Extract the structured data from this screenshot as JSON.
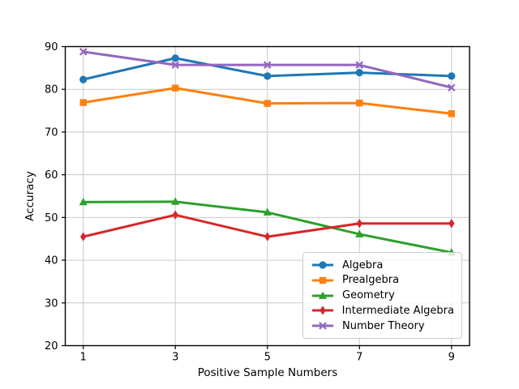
{
  "figure": {
    "background_color": "#ffffff",
    "text_color": "#000000"
  },
  "chart_data": {
    "type": "line",
    "title": "",
    "xlabel": "Positive Sample Numbers",
    "ylabel": "Accuracy",
    "x": [
      1,
      3,
      5,
      7,
      9
    ],
    "xticks": [
      "1",
      "3",
      "5",
      "7",
      "9"
    ],
    "yticks": [
      20,
      30,
      40,
      50,
      60,
      70,
      80,
      90
    ],
    "ylim": [
      20,
      90
    ],
    "xlim_padding": "markers inset ~22px from side spines",
    "grid": true,
    "grid_color": "#c9c9c9",
    "axis_color": "#000000",
    "legend_position": "lower right",
    "series": [
      {
        "name": "Algebra",
        "color": "#1f77b4",
        "marker": "circle",
        "values": [
          82.3,
          87.3,
          83.1,
          83.9,
          83.1
        ]
      },
      {
        "name": "Prealgebra",
        "color": "#ff7f0e",
        "marker": "square",
        "values": [
          76.9,
          80.3,
          76.7,
          76.8,
          74.3
        ]
      },
      {
        "name": "Geometry",
        "color": "#2ca02c",
        "marker": "triangle-up",
        "values": [
          53.6,
          53.7,
          51.2,
          46.1,
          41.8
        ]
      },
      {
        "name": "Intermediate Algebra",
        "color": "#d62728",
        "marker": "diamond-thin",
        "values": [
          45.5,
          50.6,
          45.5,
          48.6,
          48.6
        ]
      },
      {
        "name": "Number Theory",
        "color": "#9467bd",
        "marker": "x",
        "values": [
          88.8,
          85.7,
          85.7,
          85.7,
          80.4
        ]
      }
    ]
  }
}
